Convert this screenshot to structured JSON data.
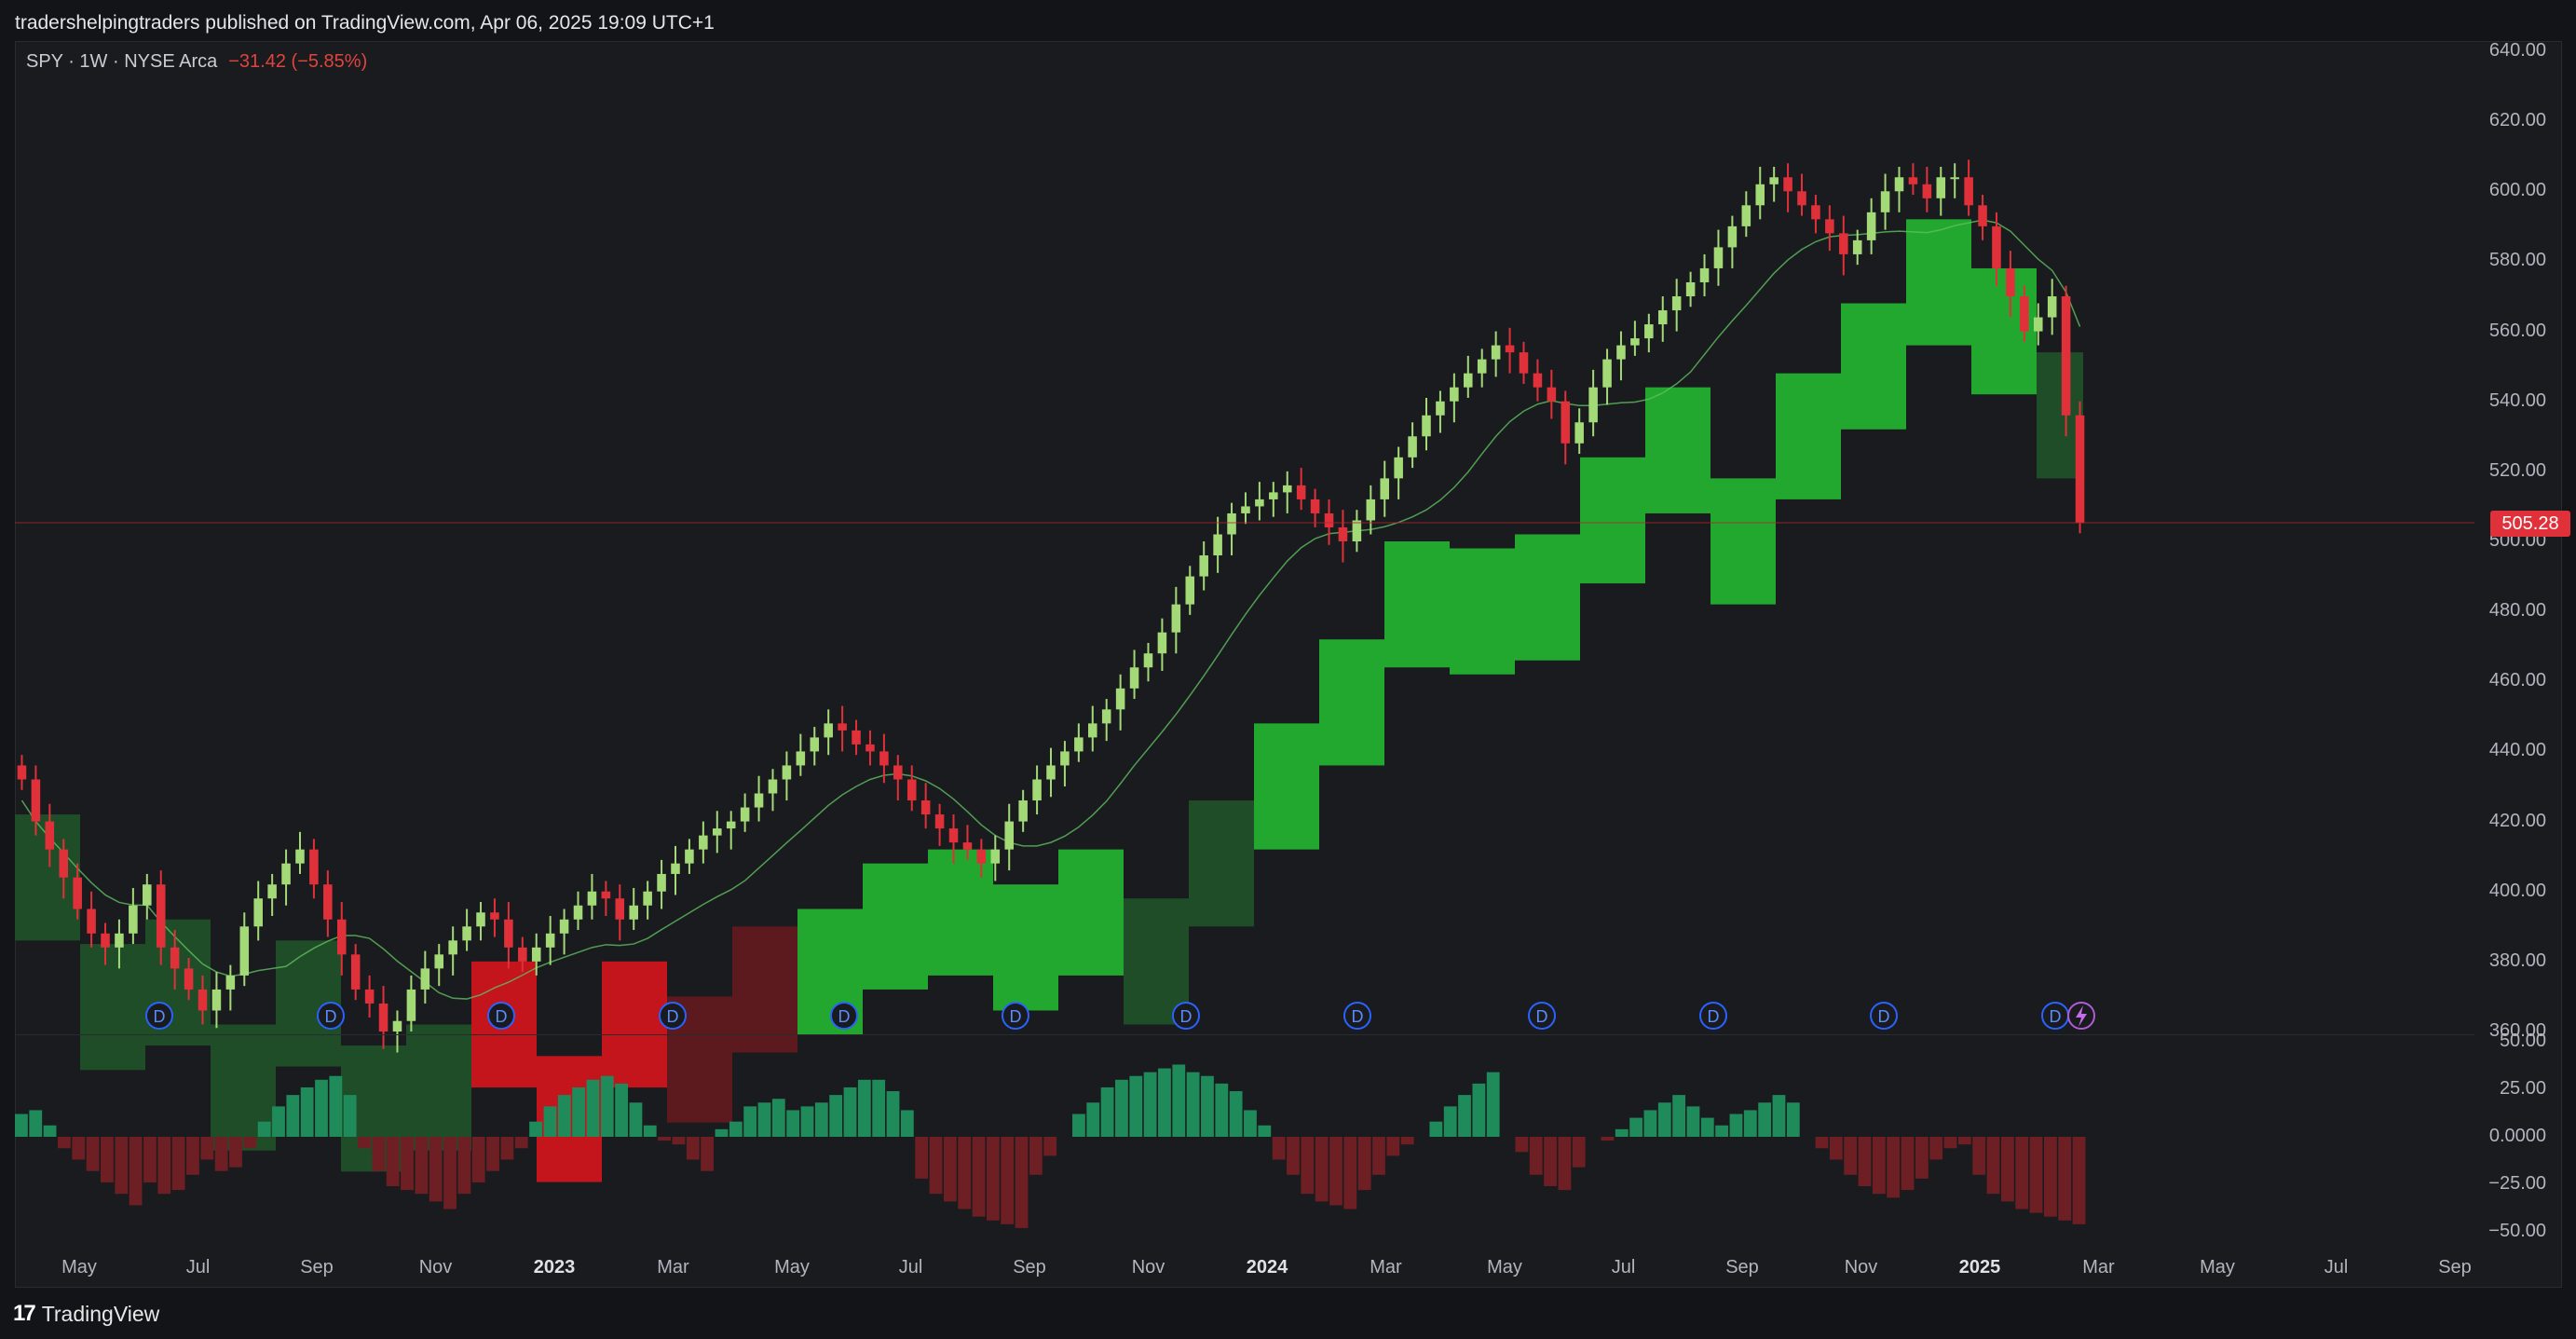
{
  "header": {
    "publisher_line": "tradershelpingtraders published on TradingView.com, Apr 06, 2025 19:09 UTC+1"
  },
  "legend": {
    "symbol": "SPY · 1W · NYSE Arca",
    "change": "−31.42 (−5.85%)"
  },
  "price_axis": {
    "labels": [
      "640.00",
      "620.00",
      "600.00",
      "580.00",
      "560.00",
      "540.00",
      "520.00",
      "500.00",
      "480.00",
      "460.00",
      "440.00",
      "420.00",
      "400.00",
      "380.00",
      "360.00"
    ],
    "last_price": "505.28"
  },
  "oscillator_axis": {
    "labels": [
      "50.00",
      "25.00",
      "0.0000",
      "−25.00",
      "−50.00"
    ]
  },
  "time_axis": {
    "labels": [
      "May",
      "Jul",
      "Sep",
      "Nov",
      "2023",
      "Mar",
      "May",
      "Jul",
      "Sep",
      "Nov",
      "2024",
      "Mar",
      "May",
      "Jul",
      "Sep",
      "Nov",
      "2025",
      "Mar",
      "May",
      "Jul",
      "Sep"
    ],
    "year_labels": [
      "2023",
      "2024",
      "2025"
    ]
  },
  "event_markers": {
    "dividend_label": "D",
    "count": 12,
    "split_icon": "lightning-icon"
  },
  "footer": {
    "brand": "TradingView",
    "logo_text": "17"
  },
  "colors": {
    "background": "#131417",
    "up_candle": "#a3d977",
    "down_candle": "#e0313a",
    "cloud_green": "#22a82e",
    "cloud_dark_green": "#1f4d28",
    "cloud_red": "#c4141c",
    "hist_up": "#1f8a5a",
    "hist_down": "#6e1f23",
    "marker": "#2962ff"
  },
  "chart_data": {
    "type": "candlestick",
    "symbol": "SPY",
    "interval": "1W",
    "ylim": [
      360,
      640
    ],
    "last_price": 505.28,
    "close_series": [
      432,
      420,
      412,
      404,
      395,
      388,
      384,
      388,
      396,
      402,
      384,
      378,
      372,
      366,
      372,
      376,
      390,
      398,
      402,
      408,
      412,
      402,
      392,
      382,
      372,
      368,
      360,
      363,
      372,
      378,
      382,
      386,
      390,
      394,
      392,
      384,
      380,
      384,
      388,
      392,
      396,
      400,
      398,
      392,
      396,
      400,
      405,
      408,
      412,
      416,
      418,
      420,
      424,
      428,
      432,
      436,
      440,
      444,
      448,
      446,
      442,
      440,
      436,
      432,
      426,
      422,
      418,
      414,
      412,
      408,
      412,
      420,
      426,
      432,
      436,
      440,
      444,
      448,
      452,
      458,
      464,
      468,
      474,
      482,
      490,
      496,
      502,
      508,
      510,
      512,
      514,
      516,
      512,
      508,
      504,
      500,
      506,
      512,
      518,
      524,
      530,
      536,
      540,
      544,
      548,
      552,
      556,
      554,
      548,
      544,
      540,
      528,
      534,
      544,
      552,
      556,
      558,
      562,
      566,
      570,
      574,
      578,
      584,
      590,
      596,
      602,
      604,
      600,
      596,
      592,
      588,
      582,
      586,
      594,
      600,
      604,
      602,
      598,
      604,
      604,
      596,
      590,
      578,
      570,
      560,
      564,
      570,
      536,
      505.28
    ],
    "oscillator": {
      "ylim": [
        -50,
        50
      ],
      "values": [
        12,
        14,
        6,
        -6,
        -12,
        -18,
        -24,
        -30,
        -36,
        -24,
        -30,
        -28,
        -20,
        -12,
        -18,
        -16,
        -6,
        8,
        16,
        22,
        26,
        30,
        32,
        22,
        -6,
        -18,
        -26,
        -28,
        -30,
        -34,
        -38,
        -30,
        -24,
        -18,
        -12,
        -6,
        8,
        16,
        22,
        26,
        30,
        32,
        28,
        18,
        6,
        -2,
        -4,
        -12,
        -18,
        4,
        8,
        16,
        18,
        20,
        14,
        16,
        18,
        22,
        26,
        30,
        30,
        24,
        14,
        -22,
        -30,
        -34,
        -38,
        -42,
        -44,
        -46,
        -48,
        -20,
        -10,
        0,
        12,
        18,
        26,
        30,
        32,
        34,
        36,
        38,
        34,
        32,
        28,
        24,
        14,
        6,
        -12,
        -20,
        -30,
        -34,
        -36,
        -38,
        -28,
        -20,
        -10,
        -4,
        0,
        8,
        16,
        22,
        28,
        34,
        0,
        -8,
        -20,
        -26,
        -28,
        -16,
        0,
        -2,
        4,
        10,
        14,
        18,
        22,
        16,
        10,
        6,
        12,
        14,
        18,
        22,
        18,
        0,
        -6,
        -12,
        -20,
        -26,
        -30,
        -32,
        -28,
        -22,
        -12,
        -6,
        -4,
        -20,
        -30,
        -34,
        -38,
        -40,
        -42,
        -44,
        -46
      ]
    }
  }
}
